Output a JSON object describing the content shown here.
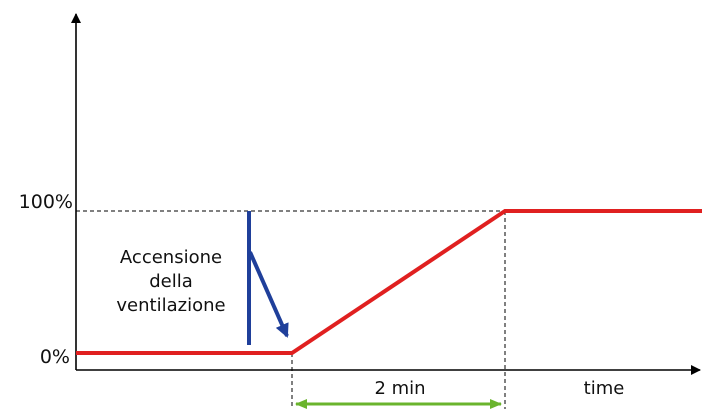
{
  "labels": {
    "y_top": "100%",
    "y_bottom": "0%",
    "annotation_line1": "Accensione",
    "annotation_line2": "della",
    "annotation_line3": "ventilazione",
    "duration": "2 min",
    "x_axis": "time"
  },
  "colors": {
    "signal_line": "#e02020",
    "annotation_arrow": "#1f3f9a",
    "duration_arrow": "#6ab42d",
    "axis": "#000000",
    "guide_lines": "#000000"
  },
  "chart_data": {
    "type": "line",
    "series": [
      {
        "x": [
          "0",
          "t_on",
          "t_on + 2 min",
          "end"
        ],
        "y": [
          0,
          0,
          100,
          100
        ]
      }
    ],
    "y_ticks": [
      "0%",
      "100%"
    ],
    "xlabel": "time",
    "annotations": [
      "Accensione della ventilazione",
      "2 min"
    ]
  }
}
